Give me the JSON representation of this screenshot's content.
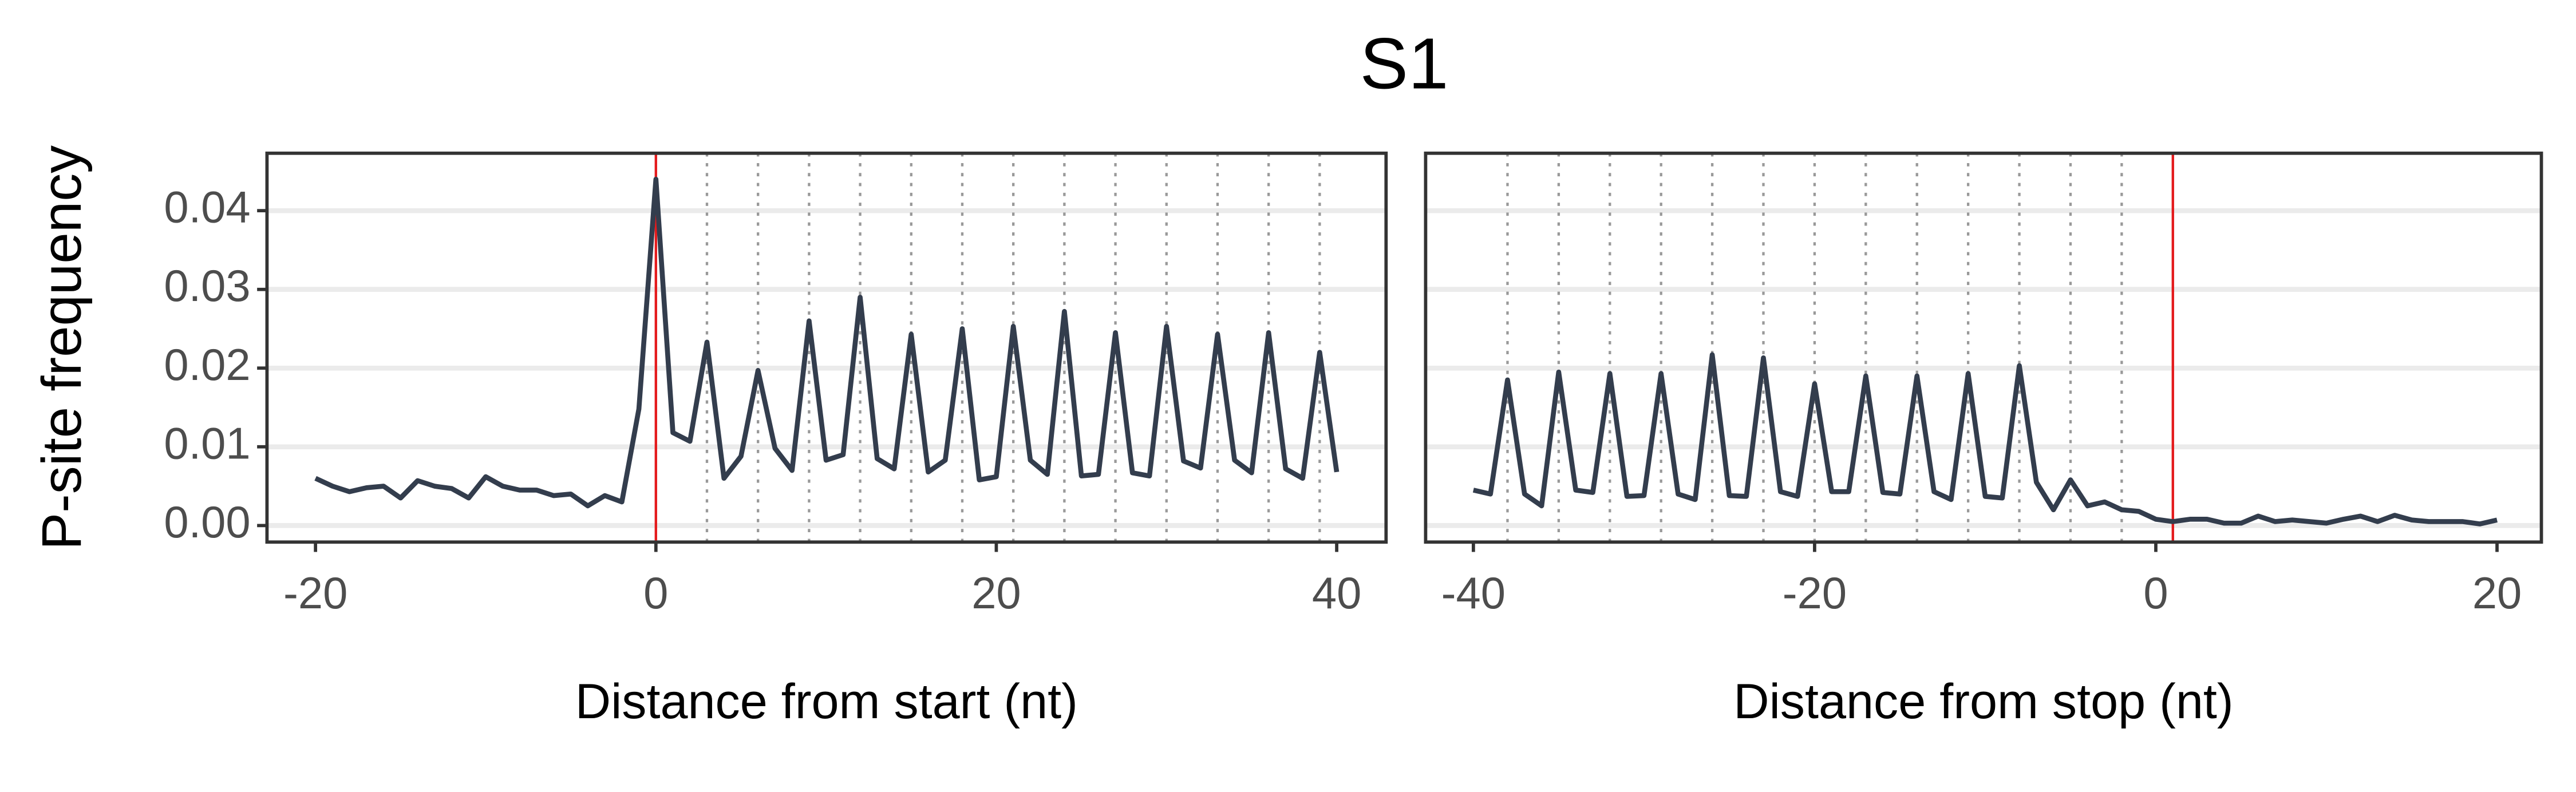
{
  "title": "S1",
  "y_label": "P-site frequency",
  "chart_data": [
    {
      "type": "line",
      "x_label": "Distance from start (nt)",
      "color": "#333d4d",
      "grid": true,
      "reference_line": 0,
      "reference_color": "#e41a1c",
      "frame_lines": [
        3,
        6,
        9,
        12,
        15,
        18,
        21,
        24,
        27,
        30,
        33,
        36,
        39
      ],
      "xlim": [
        -22.85,
        42.9
      ],
      "xticks": [
        -20,
        0,
        20,
        40
      ],
      "ylim": [
        -0.0021,
        0.0473
      ],
      "yticks": [
        {
          "value": 0,
          "label": "0.00"
        },
        0.01,
        0.02,
        0.03,
        0.04
      ],
      "x": [
        -20,
        -19,
        -18,
        -17,
        -16,
        -15,
        -14,
        -13,
        -12,
        -11,
        -10,
        -9,
        -8,
        -7,
        -6,
        -5,
        -4,
        -3,
        -2,
        -1,
        0,
        1,
        2,
        3,
        4,
        5,
        6,
        7,
        8,
        9,
        10,
        11,
        12,
        13,
        14,
        15,
        16,
        17,
        18,
        19,
        20,
        21,
        22,
        23,
        24,
        25,
        26,
        27,
        28,
        29,
        30,
        31,
        32,
        33,
        34,
        35,
        36,
        37,
        38,
        39,
        40
      ],
      "values": [
        0.006,
        0.005,
        0.0043,
        0.0048,
        0.005,
        0.0035,
        0.0057,
        0.005,
        0.0047,
        0.0035,
        0.0062,
        0.005,
        0.0045,
        0.0045,
        0.0038,
        0.004,
        0.0025,
        0.0038,
        0.003,
        0.0148,
        0.044,
        0.0118,
        0.0107,
        0.0233,
        0.006,
        0.0088,
        0.0197,
        0.0098,
        0.007,
        0.026,
        0.0083,
        0.009,
        0.029,
        0.0085,
        0.0072,
        0.0243,
        0.0068,
        0.0083,
        0.025,
        0.0058,
        0.0062,
        0.0253,
        0.0083,
        0.0065,
        0.0272,
        0.0063,
        0.0065,
        0.0245,
        0.0067,
        0.0063,
        0.0253,
        0.0082,
        0.0073,
        0.0243,
        0.0083,
        0.0067,
        0.0245,
        0.0072,
        0.006,
        0.022,
        0.0068
      ]
    },
    {
      "type": "line",
      "x_label": "Distance from stop (nt)",
      "color": "#333d4d",
      "grid": true,
      "reference_line": 1,
      "reference_color": "#e41a1c",
      "frame_lines": [
        -38,
        -35,
        -32,
        -29,
        -26,
        -23,
        -20,
        -17,
        -14,
        -11,
        -8,
        -5,
        -2
      ],
      "xlim": [
        -42.8,
        22.6
      ],
      "xticks": [
        -40,
        -20,
        0,
        20
      ],
      "x": [
        -40,
        -39,
        -38,
        -37,
        -36,
        -35,
        -34,
        -33,
        -32,
        -31,
        -30,
        -29,
        -28,
        -27,
        -26,
        -25,
        -24,
        -23,
        -22,
        -21,
        -20,
        -19,
        -18,
        -17,
        -16,
        -15,
        -14,
        -13,
        -12,
        -11,
        -10,
        -9,
        -8,
        -7,
        -6,
        -5,
        -4,
        -3,
        -2,
        -1,
        0,
        1,
        2,
        3,
        4,
        5,
        6,
        7,
        8,
        9,
        10,
        11,
        12,
        13,
        14,
        15,
        16,
        17,
        18,
        19,
        20
      ],
      "values": [
        0.0045,
        0.004,
        0.0185,
        0.004,
        0.0025,
        0.0195,
        0.0045,
        0.0042,
        0.0193,
        0.0037,
        0.0038,
        0.0193,
        0.004,
        0.0033,
        0.0217,
        0.0038,
        0.0037,
        0.0213,
        0.0043,
        0.0037,
        0.018,
        0.0043,
        0.0043,
        0.019,
        0.0042,
        0.004,
        0.019,
        0.0043,
        0.0033,
        0.0193,
        0.0037,
        0.0035,
        0.0203,
        0.0055,
        0.002,
        0.0058,
        0.0025,
        0.003,
        0.002,
        0.0018,
        0.0008,
        0.0005,
        0.0008,
        0.0008,
        0.0003,
        0.0003,
        0.0012,
        0.0005,
        0.0007,
        0.0005,
        0.0003,
        0.0008,
        0.0012,
        0.0005,
        0.0013,
        0.0007,
        0.0005,
        0.0005,
        0.0005,
        0.0002,
        0.0007
      ]
    }
  ]
}
